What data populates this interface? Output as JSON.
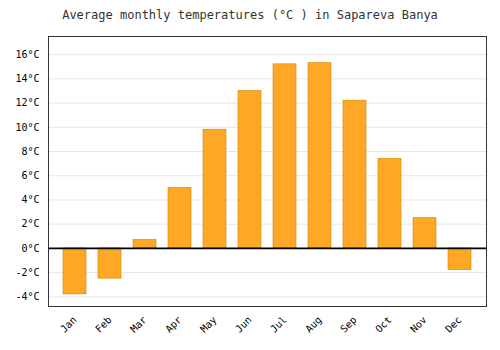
{
  "chart_data": {
    "type": "bar",
    "title": "Average monthly temperatures (°C ) in Sapareva Banya",
    "categories": [
      "Jan",
      "Feb",
      "Mar",
      "Apr",
      "May",
      "Jun",
      "Jul",
      "Aug",
      "Sep",
      "Oct",
      "Nov",
      "Dec"
    ],
    "values": [
      -3.8,
      -2.5,
      0.7,
      5.0,
      9.8,
      13.0,
      15.2,
      15.3,
      12.2,
      7.4,
      2.5,
      -1.8
    ],
    "color": "#FFA726",
    "ylim": [
      -4.8,
      17.5
    ],
    "yticks": [
      {
        "value": -4,
        "label": "-4°C"
      },
      {
        "value": -2,
        "label": "-2°C"
      },
      {
        "value": 0,
        "label": "0°C"
      },
      {
        "value": 2,
        "label": "2°C"
      },
      {
        "value": 4,
        "label": "4°C"
      },
      {
        "value": 6,
        "label": "6°C"
      },
      {
        "value": 8,
        "label": "8°C"
      },
      {
        "value": 10,
        "label": "10°C"
      },
      {
        "value": 12,
        "label": "12°C"
      },
      {
        "value": 14,
        "label": "14°C"
      },
      {
        "value": 16,
        "label": "16°C"
      }
    ],
    "grid": true
  }
}
